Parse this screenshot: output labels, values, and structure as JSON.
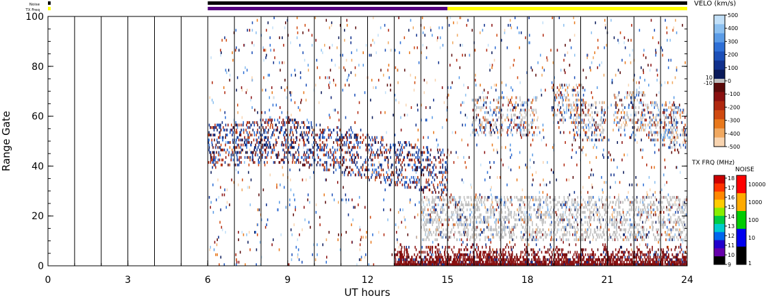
{
  "chart_data": {
    "type": "heatmap",
    "xlabel": "UT hours",
    "ylabel": "Range Gate",
    "xlim": [
      0,
      24
    ],
    "ylim": [
      0,
      100
    ],
    "x_ticks": [
      "0",
      "3",
      "6",
      "9",
      "12",
      "15",
      "18",
      "21",
      "24"
    ],
    "y_ticks": [
      "0",
      "20",
      "40",
      "60",
      "80",
      "100"
    ],
    "grid": "vertical lines every hour from 0 to 24",
    "status_bars": [
      {
        "label": "Noise",
        "segments": [
          {
            "start": 0,
            "end": 0.1,
            "color": "#000000"
          },
          {
            "start": 6,
            "end": 24,
            "color": "#000000"
          }
        ]
      },
      {
        "label": "TX Freq",
        "segments": [
          {
            "start": 0,
            "end": 0.1,
            "color": "#ffff00"
          },
          {
            "start": 6,
            "end": 15,
            "color": "#55007f"
          },
          {
            "start": 15,
            "end": 24,
            "color": "#ffff00"
          }
        ]
      }
    ],
    "velocity_scale": {
      "title": "VELO (km/s)",
      "range": [
        -500,
        500
      ],
      "ticks": [
        "500",
        "400",
        "300",
        "200",
        "100",
        "0",
        "-100",
        "-200",
        "-300",
        "-400",
        "-500"
      ],
      "ground_scatter_band": [
        "10",
        "-10"
      ],
      "colors_positive": [
        "#0a1a5a",
        "#10308c",
        "#1c4fb8",
        "#2e6fd6",
        "#5a9be6",
        "#8cc0f0",
        "#c2e0f8"
      ],
      "colors_negative": [
        "#5a0a0a",
        "#8a1010",
        "#b02810",
        "#d04a10",
        "#e8781c",
        "#f0a860",
        "#f8d4b0"
      ],
      "ground_scatter_color": "#c0c0c0"
    },
    "tx_freq_scale": {
      "title": "TX FRQ (MHz)",
      "ticks": [
        "18",
        "17",
        "16",
        "15",
        "14",
        "13",
        "12",
        "11",
        "10",
        "9"
      ],
      "colors": [
        "#cc0000",
        "#ff3300",
        "#ff8800",
        "#ffcc00",
        "#88ee00",
        "#00cc44",
        "#00cccc",
        "#0066ee",
        "#2200cc",
        "#6600aa",
        "#000000"
      ]
    },
    "noise_scale": {
      "title": "NOISE",
      "ticks": [
        "10000",
        "1000",
        "100",
        "10",
        "1"
      ],
      "colors": [
        "#ff0000",
        "#ffaa00",
        "#00cc00",
        "#0000ee",
        "#000000"
      ]
    },
    "data_regions": [
      {
        "desc": "sparse random scatter",
        "x": [
          6,
          24
        ],
        "y": [
          0,
          100
        ]
      },
      {
        "desc": "ionospheric band",
        "x": [
          6,
          15
        ],
        "y": [
          22,
          65
        ],
        "trend": "descending"
      },
      {
        "desc": "ground scatter band",
        "x": [
          15,
          24
        ],
        "y": [
          10,
          28
        ]
      },
      {
        "desc": "negative velocity near gates 0-8",
        "x": [
          13,
          24
        ],
        "y": [
          0,
          8
        ]
      },
      {
        "desc": "upper echoes",
        "x": [
          15.5,
          24
        ],
        "y": [
          45,
          72
        ]
      }
    ]
  }
}
